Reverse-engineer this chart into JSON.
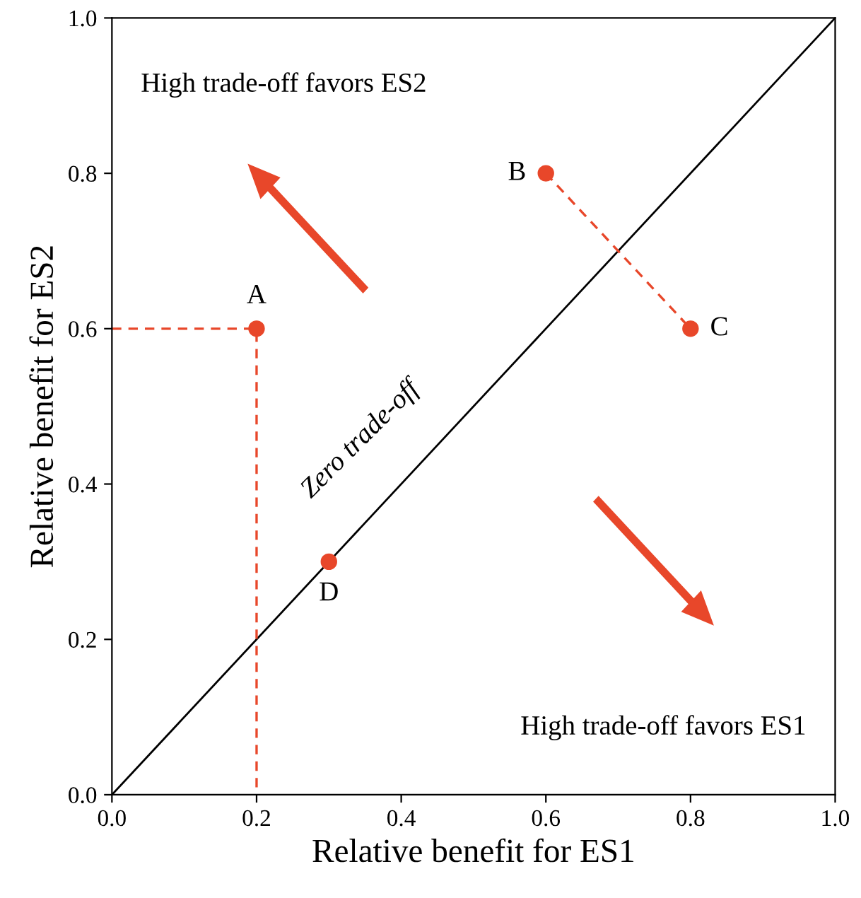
{
  "chart_data": {
    "type": "scatter",
    "xlabel": "Relative benefit for ES1",
    "ylabel": "Relative benefit for ES2",
    "xlim": [
      0,
      1
    ],
    "ylim": [
      0,
      1
    ],
    "xticks": [
      {
        "value": 0,
        "label": "0.0"
      },
      {
        "value": 0.2,
        "label": "0.2"
      },
      {
        "value": 0.4,
        "label": "0.4"
      },
      {
        "value": 0.6,
        "label": "0.6"
      },
      {
        "value": 0.8,
        "label": "0.8"
      },
      {
        "value": 1,
        "label": "1.0"
      }
    ],
    "yticks": [
      {
        "value": 0,
        "label": "0.0"
      },
      {
        "value": 0.2,
        "label": "0.2"
      },
      {
        "value": 0.4,
        "label": "0.4"
      },
      {
        "value": 0.6,
        "label": "0.6"
      },
      {
        "value": 0.8,
        "label": "0.8"
      },
      {
        "value": 1,
        "label": "1.0"
      }
    ],
    "grid": false,
    "legend": false,
    "series": [
      {
        "type": "line",
        "x": [
          0,
          1
        ],
        "values": [
          0,
          1
        ],
        "color": "#000000",
        "line_style": "solid"
      },
      {
        "type": "line",
        "x": [
          0,
          0.2,
          0.2
        ],
        "values": [
          0.6,
          0.6,
          0
        ],
        "color": "#e8472a",
        "line_style": "dashed"
      },
      {
        "type": "line",
        "x": [
          0.6,
          0.8
        ],
        "values": [
          0.8,
          0.6
        ],
        "color": "#e8472a",
        "line_style": "dashed"
      },
      {
        "x": [
          0.2,
          0.6,
          0.8,
          0.3
        ],
        "values": [
          0.6,
          0.8,
          0.6,
          0.3
        ],
        "color": "#e8472a",
        "marker": "circle"
      }
    ],
    "annotations": [
      {
        "text": "A",
        "x": 0.2,
        "y": 0.6
      },
      {
        "text": "B",
        "x": 0.6,
        "y": 0.8
      },
      {
        "text": "C",
        "x": 0.8,
        "y": 0.6
      },
      {
        "text": "D",
        "x": 0.3,
        "y": 0.3
      },
      {
        "text": "Zero trade-off",
        "x": 0.36,
        "y": 0.36
      },
      "High trade-off favors ES2",
      "High trade-off favors ES1"
    ]
  }
}
